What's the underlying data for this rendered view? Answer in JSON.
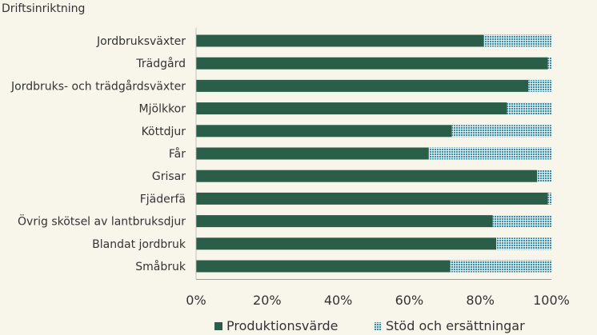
{
  "chart_data": {
    "type": "bar",
    "orientation": "horizontal",
    "stacked": true,
    "ylabel": "Driftsinriktning",
    "categories": [
      "Jordbruksväxter",
      "Trädgård",
      "Jordbruks- och trädgårdsväxter",
      "Mjölkkor",
      "Köttdjur",
      "Får",
      "Grisar",
      "Fjäderfä",
      "Övrig skötsel av lantbruksdjur",
      "Blandat jordbruk",
      "Småbruk"
    ],
    "series": [
      {
        "name": "Produktionsvärde",
        "color": "#2a5e48",
        "pattern": "solid",
        "values": [
          81,
          99,
          93.5,
          87.5,
          72,
          65.5,
          96,
          99,
          83.5,
          84.5,
          71.5
        ]
      },
      {
        "name": "Stöd och ersättningar",
        "color": "#3b8ea5",
        "pattern": "dotted",
        "values": [
          19,
          1,
          6.5,
          12.5,
          28,
          34.5,
          4,
          1,
          16.5,
          15.5,
          28.5
        ]
      }
    ],
    "xlim": [
      0,
      100
    ],
    "xticks": [
      "0%",
      "20%",
      "40%",
      "60%",
      "80%",
      "100%"
    ],
    "grid": false,
    "legend_position": "bottom"
  }
}
